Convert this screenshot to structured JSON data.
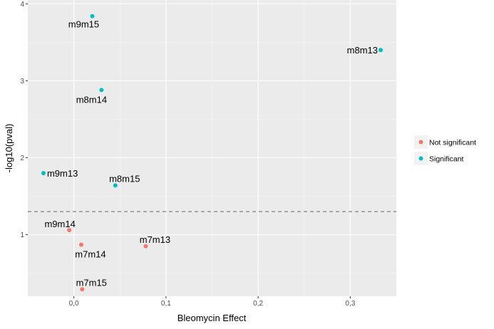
{
  "chart_data": {
    "type": "scatter",
    "xlabel": "Bleomycin Effect",
    "ylabel": "-log10(pval)",
    "xlim": [
      -0.05,
      0.35
    ],
    "ylim": [
      0.2,
      4.05
    ],
    "x_ticks": [
      0.0,
      0.1,
      0.2,
      0.3
    ],
    "x_tick_labels": [
      "0,0",
      "0,1",
      "0,2",
      "0,3"
    ],
    "y_ticks": [
      1,
      2,
      3,
      4
    ],
    "y_tick_labels": [
      "1",
      "2",
      "3",
      "4"
    ],
    "grid": true,
    "legend_position": "right",
    "threshold_line": {
      "y": 1.3,
      "style": "dashed"
    },
    "series": [
      {
        "name": "Not significant",
        "color": "#F8766D",
        "points": [
          {
            "label": "m9m14",
            "x": -0.005,
            "y": 1.06
          },
          {
            "label": "m7m14",
            "x": 0.008,
            "y": 0.87
          },
          {
            "label": "m7m13",
            "x": 0.078,
            "y": 0.85
          },
          {
            "label": "m7m15",
            "x": 0.009,
            "y": 0.29
          }
        ]
      },
      {
        "name": "Significant",
        "color": "#00BFC4",
        "points": [
          {
            "label": "m9m15",
            "x": 0.02,
            "y": 3.84
          },
          {
            "label": "m8m13",
            "x": 0.333,
            "y": 3.4
          },
          {
            "label": "m8m14",
            "x": 0.03,
            "y": 2.88
          },
          {
            "label": "m9m13",
            "x": -0.033,
            "y": 1.8
          },
          {
            "label": "m8m15",
            "x": 0.045,
            "y": 1.64
          }
        ]
      }
    ]
  }
}
